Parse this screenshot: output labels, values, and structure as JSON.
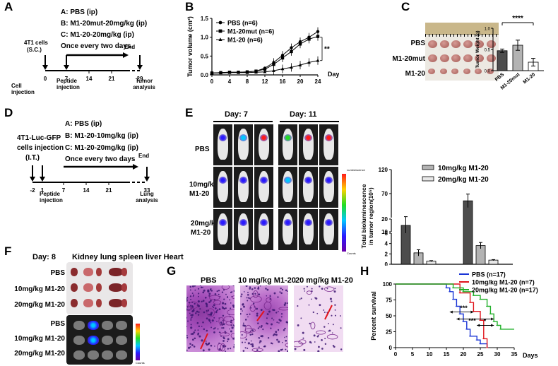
{
  "panels": {
    "A": {
      "letter": "A",
      "groups": [
        "A: PBS (ip)",
        "B: M1-20mut-20mg/kg (ip)",
        "C: M1-20-20mg/kg (ip)"
      ],
      "freq": "Once every two days",
      "end": "End",
      "cells": "4T1 cells",
      "sc": "(S.C.)",
      "ticks": [
        "0",
        "7",
        "14",
        "21",
        "29"
      ],
      "cell_inj": "Cell injection",
      "pep_inj": "Peptide injection",
      "tumor_an": "Tumor analysis"
    },
    "B": {
      "letter": "B",
      "ylabel": "Tumor volume (cm³)",
      "xlabel": "Days",
      "sig": "**"
    },
    "C": {
      "letter": "C",
      "rows": [
        "PBS",
        "M1-20mut",
        "M1-20"
      ],
      "ylabel": "Tumor Weight (g)",
      "sig": "****"
    },
    "D": {
      "letter": "D",
      "groups": [
        "A: PBS (ip)",
        "B: M1-20-10mg/kg (ip)",
        "C: M1-20-20mg/kg (ip)"
      ],
      "freq": "Once every two days",
      "end": "End",
      "cells1": "4T1-Luc-GFP",
      "cells2": "cells injection",
      "cells3": "(I.T.)",
      "ticks": [
        "-2",
        "1",
        "7",
        "14",
        "21",
        "33"
      ],
      "pep_inj": "Peptide injection",
      "lung_an": "Lung analysis"
    },
    "E": {
      "letter": "E",
      "day7": "Day: 7",
      "day11": "Day: 11",
      "rows": [
        "PBS",
        "10mg/kg M1-20",
        "20mg/kg M1-20"
      ],
      "scale_title": "Luminescence",
      "scale_unit": "Counts",
      "ylabel1": "Total bioluminescence",
      "ylabel2": "in tumor region(10⁵)"
    },
    "F": {
      "letter": "F",
      "day": "Day: 8",
      "organs": "Kidney lung spleen liver Heart",
      "rows": [
        "PBS",
        "10mg/kg M1-20",
        "20mg/kg M1-20"
      ],
      "rows2": [
        "PBS",
        "10mg/kg M1-20",
        "20mg/kg M1-20"
      ],
      "scale_unit": "Counts"
    },
    "G": {
      "letter": "G",
      "titles": [
        "PBS",
        "10 mg/kg M1-20",
        "20 mg/kg M1-20"
      ]
    },
    "H": {
      "letter": "H",
      "ylabel": "Percent survival",
      "xlabel": "Days",
      "sig": [
        "***",
        "***",
        "*"
      ]
    }
  },
  "colors": {
    "pbs": "#1a35d6",
    "m10": "#e0141c",
    "m20": "#22b02a",
    "bar_dark": "#4d4d4d",
    "bar_mid": "#b3b3b3",
    "bar_light": "#e8e8e8",
    "he": "#b04fa8"
  },
  "chart_data": [
    {
      "type": "line",
      "title": "",
      "xlabel": "Days",
      "ylabel": "Tumor volume (cm³)",
      "x": [
        0,
        2,
        4,
        6,
        8,
        10,
        12,
        14,
        16,
        18,
        20,
        22,
        24
      ],
      "xlim": [
        0,
        24
      ],
      "ylim": [
        0,
        1.5
      ],
      "series": [
        {
          "name": "PBS (n=6)",
          "values": [
            0.05,
            0.06,
            0.07,
            0.07,
            0.08,
            0.1,
            0.18,
            0.33,
            0.52,
            0.72,
            0.88,
            1.0,
            1.15
          ]
        },
        {
          "name": "M1-20mut (n=6)",
          "values": [
            0.05,
            0.06,
            0.07,
            0.07,
            0.08,
            0.1,
            0.15,
            0.28,
            0.45,
            0.62,
            0.82,
            0.95,
            1.02
          ]
        },
        {
          "name": "M1-20 (n=6)",
          "values": [
            0.05,
            0.05,
            0.06,
            0.06,
            0.06,
            0.07,
            0.08,
            0.11,
            0.16,
            0.2,
            0.26,
            0.33,
            0.38
          ]
        }
      ]
    },
    {
      "type": "bar",
      "title": "",
      "xlabel": "",
      "ylabel": "Tumor Weight (g)",
      "categories": [
        "PBS",
        "M1-20mut",
        "M1-20"
      ],
      "values": [
        0.47,
        0.6,
        0.2
      ],
      "errors": [
        0.04,
        0.12,
        0.09
      ],
      "ylim": [
        0,
        1.0
      ]
    },
    {
      "type": "bar",
      "title": "",
      "xlabel": "",
      "ylabel": "Total bioluminescence in tumor region(10⁵)",
      "categories": [
        "Day: 7",
        "Day: 11"
      ],
      "series": [
        {
          "name": "PBS",
          "values": [
            15,
            55
          ]
        },
        {
          "name": "10mg/kg M1-20",
          "values": [
            2.2,
            3.6
          ]
        },
        {
          "name": "20mg/kg M1-20",
          "values": [
            0.6,
            0.8
          ]
        }
      ],
      "ylim_segments": [
        [
          0,
          6
        ],
        [
          10,
          20
        ],
        [
          20,
          120
        ]
      ]
    },
    {
      "type": "line",
      "title": "",
      "xlabel": "Days",
      "ylabel": "Percent survival",
      "x_ticks": [
        0,
        5,
        10,
        15,
        20,
        25,
        30,
        35
      ],
      "ylim": [
        0,
        100
      ],
      "series": [
        {
          "name": "PBS (n=17)",
          "steps": [
            [
              0,
              100
            ],
            [
              15,
              100
            ],
            [
              15,
              94
            ],
            [
              16,
              88
            ],
            [
              17,
              76
            ],
            [
              18,
              65
            ],
            [
              19,
              53
            ],
            [
              20,
              41
            ],
            [
              21,
              29
            ],
            [
              22,
              18
            ],
            [
              24,
              12
            ],
            [
              25,
              6
            ],
            [
              27,
              0
            ]
          ]
        },
        {
          "name": "10mg/kg M1-20 (n=7)",
          "steps": [
            [
              0,
              100
            ],
            [
              19,
              100
            ],
            [
              19,
              86
            ],
            [
              22,
              71
            ],
            [
              23,
              57
            ],
            [
              25,
              43
            ],
            [
              26,
              14
            ],
            [
              27,
              0
            ]
          ]
        },
        {
          "name": "20mg/kg M1-20 (n=17)",
          "steps": [
            [
              0,
              100
            ],
            [
              17,
              100
            ],
            [
              17,
              94
            ],
            [
              20,
              88
            ],
            [
              23,
              82
            ],
            [
              25,
              76
            ],
            [
              27,
              65
            ],
            [
              28,
              53
            ],
            [
              29,
              41
            ],
            [
              30,
              35
            ],
            [
              31,
              29
            ],
            [
              35,
              29
            ]
          ]
        }
      ]
    }
  ]
}
